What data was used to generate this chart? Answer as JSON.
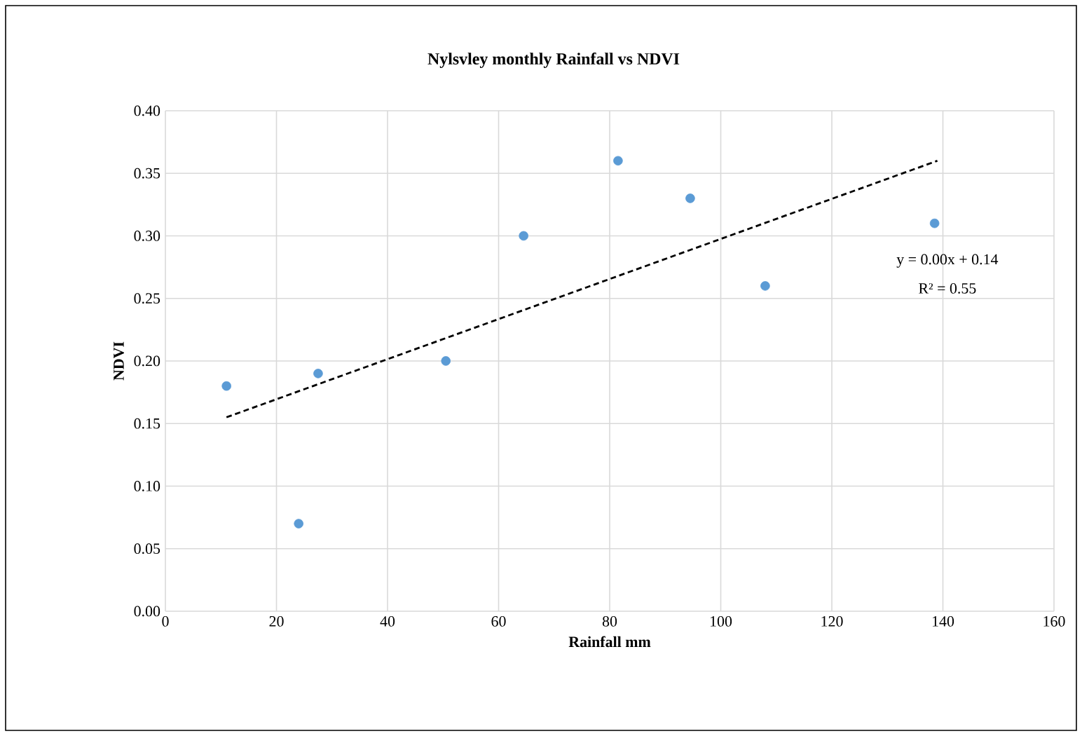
{
  "chart_data": {
    "type": "scatter",
    "title": "Nylsvley monthly Rainfall vs NDVI",
    "xlabel": "Rainfall mm",
    "ylabel": "NDVI",
    "series": [
      {
        "color": "#5b9bd5",
        "marker": "circle",
        "x": [
          11,
          24,
          27.5,
          50.5,
          64.5,
          81.5,
          94.5,
          108,
          138.5
        ],
        "values": [
          0.18,
          0.07,
          0.19,
          0.2,
          0.3,
          0.36,
          0.33,
          0.26,
          0.31
        ]
      },
      {
        "type": "line",
        "color": "#000000",
        "line_style": "dashed",
        "marker": "none",
        "x": [
          11,
          139
        ],
        "values": [
          0.155,
          0.36
        ]
      }
    ],
    "annotations": [
      "y = 0.00x + 0.14",
      "R² = 0.55"
    ],
    "xlim": [
      0,
      160
    ],
    "xticks": [
      0,
      20,
      40,
      60,
      80,
      100,
      120,
      140,
      160
    ],
    "ylim": [
      0,
      0.4
    ],
    "yticks": [
      {
        "value": 0,
        "label": "0.00"
      },
      {
        "value": 0.05,
        "label": "0.05"
      },
      {
        "value": 0.1,
        "label": "0.10"
      },
      {
        "value": 0.15,
        "label": "0.15"
      },
      {
        "value": 0.2,
        "label": "0.20"
      },
      {
        "value": 0.25,
        "label": "0.25"
      },
      {
        "value": 0.3,
        "label": "0.30"
      },
      {
        "value": 0.35,
        "label": "0.35"
      },
      {
        "value": 0.4,
        "label": "0.40"
      }
    ],
    "grid": true
  }
}
